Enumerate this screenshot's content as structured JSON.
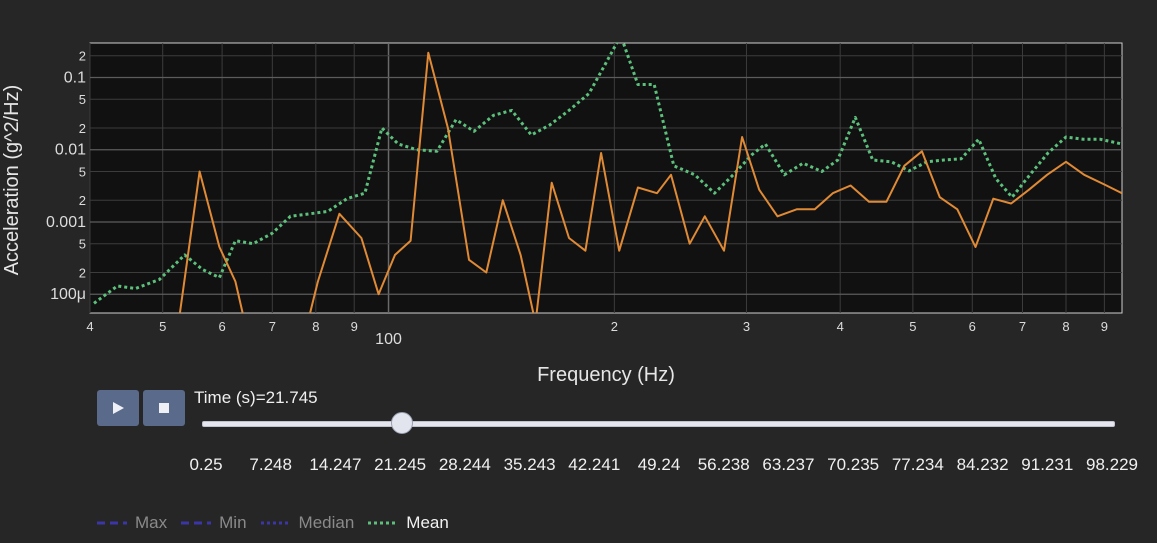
{
  "chart_data": {
    "type": "line",
    "xlabel": "Frequency (Hz)",
    "ylabel": "Acceleration (g^2/Hz)",
    "x_scale": "log",
    "y_scale": "log",
    "xlim": [
      40,
      950
    ],
    "ylim": [
      5.5e-05,
      0.3
    ],
    "grid": true,
    "x_tick_labels": [
      {
        "v": 40,
        "t": "4"
      },
      {
        "v": 50,
        "t": "5"
      },
      {
        "v": 60,
        "t": "6"
      },
      {
        "v": 70,
        "t": "7"
      },
      {
        "v": 80,
        "t": "8"
      },
      {
        "v": 90,
        "t": "9"
      },
      {
        "v": 100,
        "t": "100"
      },
      {
        "v": 200,
        "t": "2"
      },
      {
        "v": 300,
        "t": "3"
      },
      {
        "v": 400,
        "t": "4"
      },
      {
        "v": 500,
        "t": "5"
      },
      {
        "v": 600,
        "t": "6"
      },
      {
        "v": 700,
        "t": "7"
      },
      {
        "v": 800,
        "t": "8"
      },
      {
        "v": 900,
        "t": "9"
      }
    ],
    "y_tick_labels": [
      {
        "v": 0.0001,
        "t": "100μ"
      },
      {
        "v": 0.0002,
        "t": "2"
      },
      {
        "v": 0.0005,
        "t": "5"
      },
      {
        "v": 0.001,
        "t": "0.001"
      },
      {
        "v": 0.002,
        "t": "2"
      },
      {
        "v": 0.005,
        "t": "5"
      },
      {
        "v": 0.01,
        "t": "0.01"
      },
      {
        "v": 0.02,
        "t": "2"
      },
      {
        "v": 0.05,
        "t": "5"
      },
      {
        "v": 0.1,
        "t": "0.1"
      },
      {
        "v": 0.2,
        "t": "2"
      }
    ],
    "series": [
      {
        "name": "Mean",
        "color": "#5cc07c",
        "style": "dotted",
        "points": [
          [
            40.5,
            7.5e-05
          ],
          [
            43.5,
            0.00013
          ],
          [
            46,
            0.00012
          ],
          [
            49.5,
            0.00016
          ],
          [
            53.5,
            0.00035
          ],
          [
            56.5,
            0.00022
          ],
          [
            59.5,
            0.00017
          ],
          [
            62.5,
            0.00055
          ],
          [
            66,
            0.0005
          ],
          [
            70,
            0.0007
          ],
          [
            74,
            0.0012
          ],
          [
            78.5,
            0.0013
          ],
          [
            83,
            0.0014
          ],
          [
            88,
            0.0021
          ],
          [
            93,
            0.0025
          ],
          [
            98,
            0.02
          ],
          [
            103,
            0.012
          ],
          [
            109,
            0.01
          ],
          [
            116,
            0.0095
          ],
          [
            123,
            0.026
          ],
          [
            130,
            0.018
          ],
          [
            138,
            0.03
          ],
          [
            146,
            0.035
          ],
          [
            155,
            0.016
          ],
          [
            164,
            0.022
          ],
          [
            174,
            0.035
          ],
          [
            185,
            0.06
          ],
          [
            195,
            0.16
          ],
          [
            204,
            0.38
          ],
          [
            215,
            0.08
          ],
          [
            226,
            0.08
          ],
          [
            240,
            0.006
          ],
          [
            256,
            0.0045
          ],
          [
            272,
            0.0025
          ],
          [
            288,
            0.0045
          ],
          [
            305,
            0.0085
          ],
          [
            318,
            0.012
          ],
          [
            337,
            0.0045
          ],
          [
            357,
            0.0065
          ],
          [
            378,
            0.005
          ],
          [
            397,
            0.0072
          ],
          [
            419,
            0.028
          ],
          [
            442,
            0.0072
          ],
          [
            468,
            0.0068
          ],
          [
            494,
            0.0051
          ],
          [
            522,
            0.0068
          ],
          [
            550,
            0.0072
          ],
          [
            580,
            0.0075
          ],
          [
            612,
            0.014
          ],
          [
            645,
            0.004
          ],
          [
            678,
            0.0022
          ],
          [
            716,
            0.0045
          ],
          [
            757,
            0.009
          ],
          [
            800,
            0.015
          ],
          [
            843,
            0.014
          ],
          [
            888,
            0.014
          ],
          [
            950,
            0.012
          ]
        ]
      },
      {
        "name": "Current",
        "color": "#e08a35",
        "style": "solid",
        "points": [
          [
            52,
            2e-05
          ],
          [
            56,
            0.005
          ],
          [
            59.5,
            0.00045
          ],
          [
            62.5,
            0.00015
          ],
          [
            65.5,
            1.8e-05
          ],
          [
            78,
            4e-05
          ],
          [
            80.5,
            0.00015
          ],
          [
            86,
            0.0013
          ],
          [
            92,
            0.0006
          ],
          [
            97,
            0.0001
          ],
          [
            102,
            0.00035
          ],
          [
            107,
            0.00055
          ],
          [
            113,
            0.22
          ],
          [
            120,
            0.02
          ],
          [
            128,
            0.0003
          ],
          [
            135,
            0.0002
          ],
          [
            142,
            0.002
          ],
          [
            150,
            0.00035
          ],
          [
            157,
            4e-05
          ],
          [
            165,
            0.0035
          ],
          [
            174,
            0.0006
          ],
          [
            183,
            0.0004
          ],
          [
            192,
            0.009
          ],
          [
            203,
            0.0004
          ],
          [
            215,
            0.003
          ],
          [
            228,
            0.0025
          ],
          [
            238,
            0.0045
          ],
          [
            252,
            0.0005
          ],
          [
            264,
            0.0012
          ],
          [
            280,
            0.0004
          ],
          [
            296,
            0.015
          ],
          [
            312,
            0.0028
          ],
          [
            330,
            0.0012
          ],
          [
            350,
            0.0015
          ],
          [
            370,
            0.0015
          ],
          [
            391,
            0.0025
          ],
          [
            413,
            0.0032
          ],
          [
            437,
            0.0019
          ],
          [
            461,
            0.0019
          ],
          [
            487,
            0.006
          ],
          [
            514,
            0.0095
          ],
          [
            543,
            0.0022
          ],
          [
            573,
            0.0015
          ],
          [
            606,
            0.00045
          ],
          [
            640,
            0.0021
          ],
          [
            676,
            0.0018
          ],
          [
            714,
            0.0028
          ],
          [
            755,
            0.0045
          ],
          [
            800,
            0.0068
          ],
          [
            846,
            0.0045
          ],
          [
            900,
            0.0033
          ],
          [
            950,
            0.0025
          ]
        ]
      }
    ]
  },
  "controls": {
    "play_icon": "play-icon",
    "stop_icon": "stop-icon",
    "time_label": "Time (s)=21.745",
    "slider_value": 21.745,
    "slider_min": 0.25,
    "slider_max": 98.229,
    "steps": [
      "0.25",
      "7.248",
      "14.247",
      "21.245",
      "28.244",
      "35.243",
      "42.241",
      "49.24",
      "56.238",
      "63.237",
      "70.235",
      "77.234",
      "84.232",
      "91.231",
      "98.229"
    ]
  },
  "legend": {
    "items": [
      {
        "label": "Max",
        "color": "#3c35a8",
        "style": "dashed",
        "visible": false
      },
      {
        "label": "Min",
        "color": "#3c35a8",
        "style": "dashed",
        "visible": false
      },
      {
        "label": "Median",
        "color": "#3c35a8",
        "style": "dotted",
        "visible": false
      },
      {
        "label": "Mean",
        "color": "#5cc07c",
        "style": "dotted",
        "visible": true
      }
    ]
  }
}
